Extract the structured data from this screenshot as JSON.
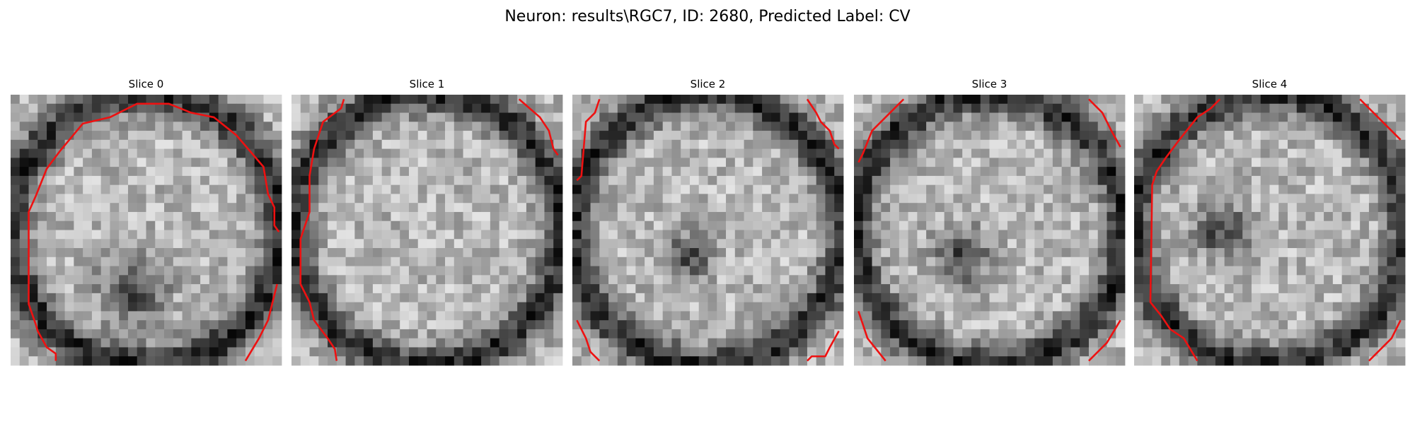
{
  "title": "Neuron: results\\RGC7, ID: 2680, Predicted Label: CV",
  "panels": [
    {
      "title": "Slice 0"
    },
    {
      "title": "Slice 1"
    },
    {
      "title": "Slice 2"
    },
    {
      "title": "Slice 3"
    },
    {
      "title": "Slice 4"
    }
  ]
}
